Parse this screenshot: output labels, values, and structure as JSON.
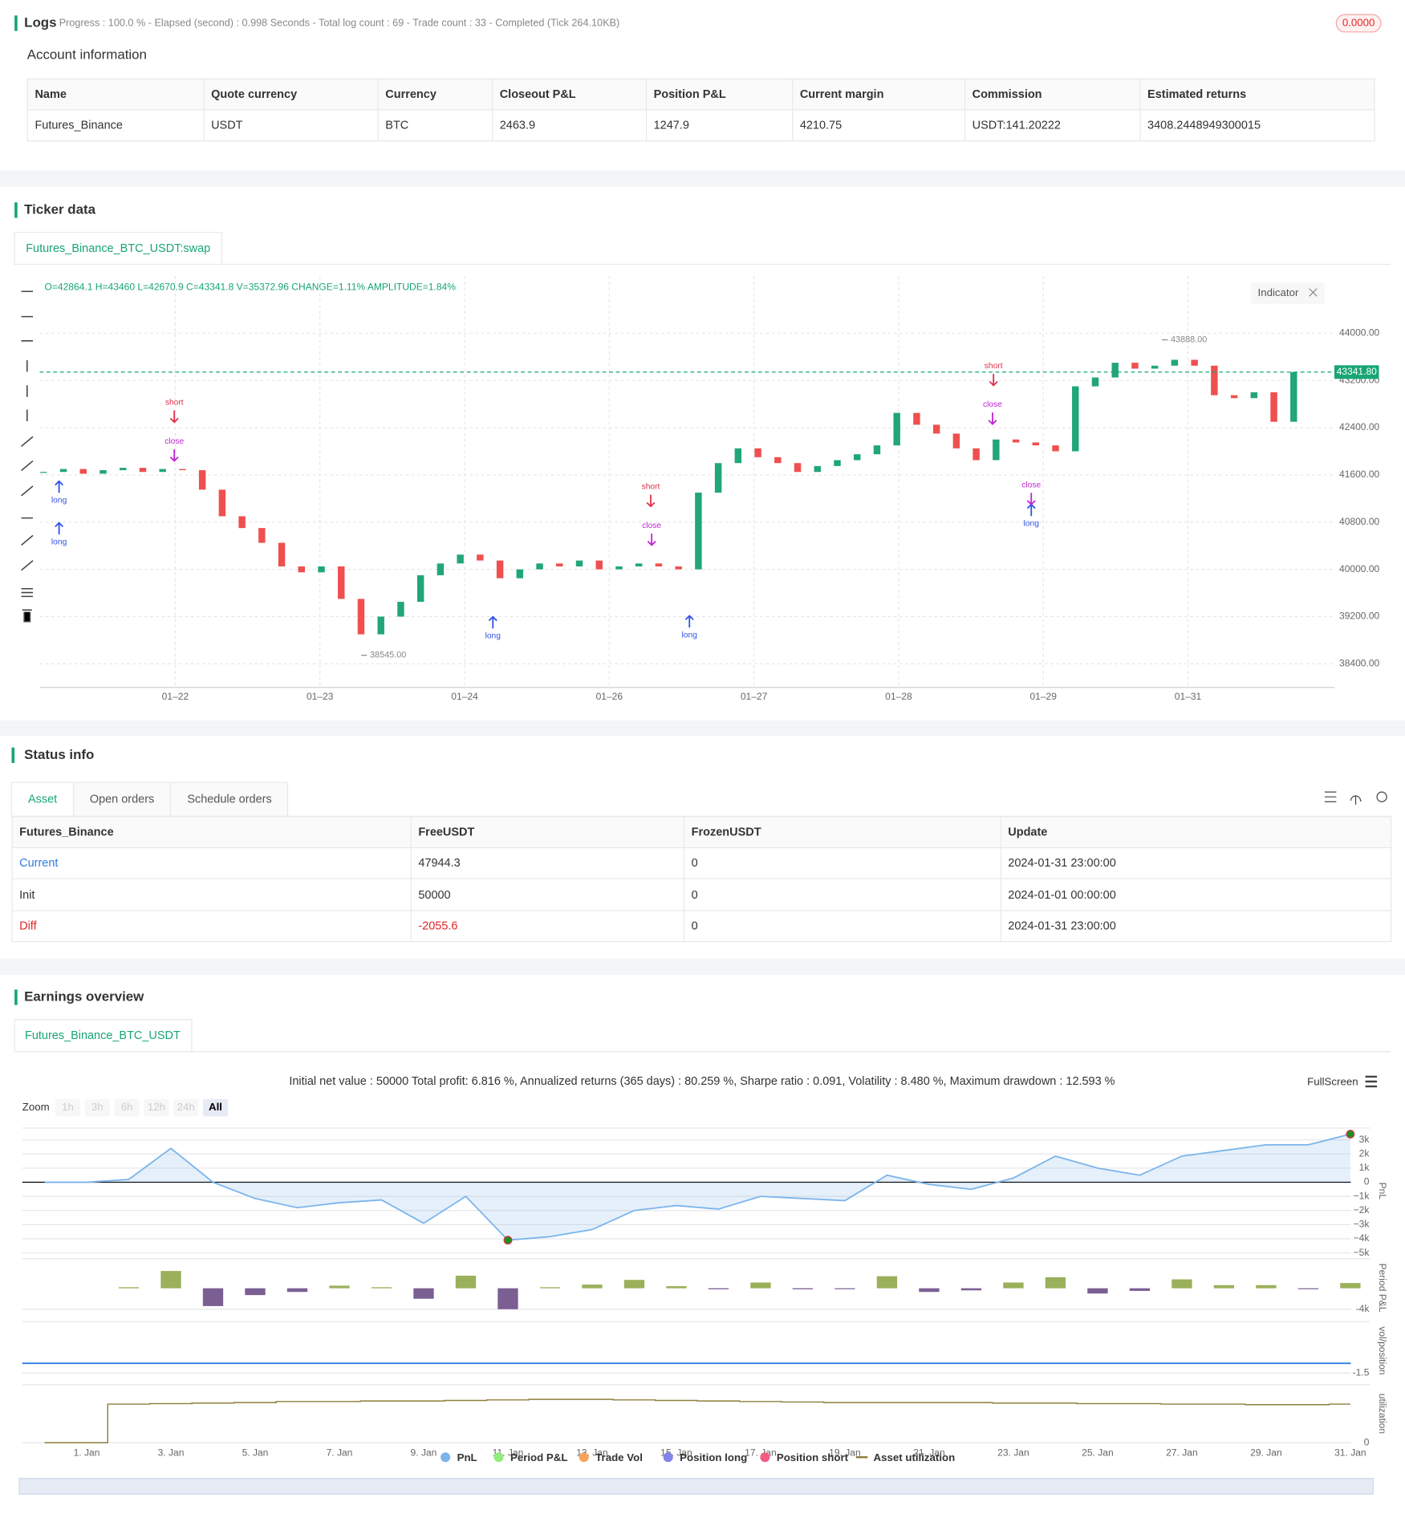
{
  "logs": {
    "title": "Logs",
    "status": "Progress : 100.0 % - Elapsed (second) : 0.998 Seconds - Total log count : 69 - Trade count : 33 - Completed (Tick 264.10KB)",
    "badge": "0.0000"
  },
  "account": {
    "title": "Account information",
    "columns": [
      "Name",
      "Quote currency",
      "Currency",
      "Closeout P&L",
      "Position P&L",
      "Current margin",
      "Commission",
      "Estimated returns"
    ],
    "rows": [
      [
        "Futures_Binance",
        "USDT",
        "BTC",
        "2463.9",
        "1247.9",
        "4210.75",
        "USDT:141.20222",
        "3408.2448949300015"
      ]
    ]
  },
  "ticker": {
    "title": "Ticker data",
    "tab": "Futures_Binance_BTC_USDT:swap",
    "ohlc": "O=42864.1 H=43460 L=42670.9 C=43341.8 V=35372.96 CHANGE=1.11% AMPLITUDE=1.84%",
    "indicator": "Indicator",
    "chart": {
      "type": "candlestick",
      "ylim": [
        38000,
        44970
      ],
      "yticks": [
        {
          "value": 38400,
          "label": "38400.00"
        },
        {
          "value": 39200,
          "label": "39200.00"
        },
        {
          "value": 40000,
          "label": "40000.00"
        },
        {
          "value": 40800,
          "label": "40800.00"
        },
        {
          "value": 41600,
          "label": "41600.00"
        },
        {
          "value": 42400,
          "label": "42400.00"
        },
        {
          "value": 43200,
          "label": "43200.00"
        },
        {
          "value": 44000,
          "label": "44000.00"
        }
      ],
      "xticks": [
        "01–22",
        "01–23",
        "01–24",
        "01–26",
        "01–27",
        "01–28",
        "01–29",
        "01–31"
      ],
      "closes": [
        41650,
        41700,
        41620,
        41680,
        41720,
        41650,
        41700,
        41680,
        41350,
        40900,
        40700,
        40450,
        40050,
        39950,
        40050,
        39500,
        38900,
        39200,
        39450,
        39900,
        40100,
        40250,
        40150,
        39850,
        40000,
        40100,
        40050,
        40150,
        40000,
        40050,
        40100,
        40050,
        40000,
        41300,
        41800,
        42050,
        41900,
        41800,
        41650,
        41750,
        41850,
        41950,
        42100,
        42650,
        42450,
        42300,
        42050,
        41850,
        42200,
        42150,
        42100,
        42000,
        43100,
        43250,
        43500,
        43400,
        43450,
        43550,
        43450,
        42950,
        42900,
        43000,
        42500,
        43341.8
      ],
      "last": {
        "value": 43341.8,
        "label": "43341.80"
      },
      "high": {
        "value": 43888,
        "label": "43888.00"
      },
      "low": {
        "value": 38545,
        "label": "38545.00"
      },
      "markers": [
        "short",
        "close",
        "long",
        "long",
        "short",
        "close",
        "long",
        "long",
        "short",
        "close",
        "long",
        "close"
      ]
    }
  },
  "status": {
    "title": "Status info",
    "tabs": [
      "Asset",
      "Open orders",
      "Schedule orders"
    ],
    "columns": [
      "Futures_Binance",
      "FreeUSDT",
      "FrozenUSDT",
      "Update"
    ],
    "rows": [
      [
        "Current",
        "47944.3",
        "0",
        "2024-01-31 23:00:00"
      ],
      [
        "Init",
        "50000",
        "0",
        "2024-01-01 00:00:00"
      ],
      [
        "Diff",
        "-2055.6",
        "0",
        "2024-01-31 23:00:00"
      ]
    ]
  },
  "earnings": {
    "title": "Earnings overview",
    "tab": "Futures_Binance_BTC_USDT",
    "summary": "Initial net value : 50000 Total profit: 6.816 %, Annualized returns (365 days) : 80.259 %, Sharpe ratio : 0.091, Volatility : 8.480 %, Maximum drawdown : 12.593 %",
    "fullscreen": "FullScreen",
    "zoom": {
      "label": "Zoom",
      "buttons": [
        "1h",
        "3h",
        "6h",
        "12h",
        "24h",
        "All"
      ]
    },
    "xticks": [
      "1. Jan",
      "3. Jan",
      "5. Jan",
      "7. Jan",
      "9. Jan",
      "11. Jan",
      "13. Jan",
      "15. Jan",
      "17. Jan",
      "19. Jan",
      "21. Jan",
      "23. Jan",
      "25. Jan",
      "27. Jan",
      "29. Jan",
      "31. Jan"
    ],
    "pnl": {
      "title": "PnL",
      "color": "#7cb5ec",
      "ylim": [
        -5070,
        3840
      ],
      "yticks": [
        {
          "value": 3000,
          "label": "3k"
        },
        {
          "value": 2000,
          "label": "2k"
        },
        {
          "value": 1000,
          "label": "1k"
        },
        0,
        {
          "value": -1000,
          "label": "−1k"
        },
        {
          "value": -2000,
          "label": "−2k"
        },
        {
          "value": -3000,
          "label": "−3k"
        },
        {
          "value": -4000,
          "label": "−4k"
        },
        {
          "value": -5000,
          "label": "−5k"
        }
      ],
      "values": [
        0,
        0,
        200,
        2400,
        0,
        -1150,
        -1800,
        -1450,
        -1250,
        -2900,
        -1000,
        -4100,
        -3850,
        -3350,
        -2000,
        -1650,
        -1900,
        -1000,
        -1150,
        -1300,
        500,
        -150,
        -500,
        300,
        1850,
        1000,
        500,
        1850,
        2250,
        2650,
        2650,
        3408
      ]
    },
    "period": {
      "title": "Period P&L",
      "ylim": [
        -5450,
        5640
      ],
      "yticks": [
        {
          "value": -4000,
          "label": "-4k"
        }
      ],
      "values": [
        null,
        null,
        200,
        3300,
        -3400,
        -1300,
        -700,
        500,
        200,
        -2000,
        2400,
        -4000,
        200,
        700,
        1600,
        400,
        -200,
        1100,
        -200,
        -100,
        2300,
        -700,
        -400,
        1100,
        2100,
        -1000,
        -500,
        1700,
        600,
        600,
        -100,
        1000
      ]
    },
    "vol": {
      "title": "vol/position",
      "ylim": [
        -2.55,
        6.45
      ],
      "yticks": [
        -1.5
      ]
    },
    "util": {
      "title": "utilization",
      "color": "#8d7f3c",
      "ylim": [
        0,
        1.1
      ],
      "yticks": [
        0
      ],
      "values": [
        0,
        0,
        0.73,
        0.74,
        0.75,
        0.76,
        0.78,
        0.78,
        0.79,
        0.79,
        0.8,
        0.81,
        0.82,
        0.82,
        0.81,
        0.8,
        0.79,
        0.78,
        0.77,
        0.76,
        0.76,
        0.76,
        0.76,
        0.75,
        0.75,
        0.74,
        0.74,
        0.73,
        0.73,
        0.72,
        0.72,
        0.73
      ]
    },
    "legend": [
      {
        "name": "PnL",
        "color": "#7cb5ec"
      },
      {
        "name": "Period P&L",
        "color": "#90ed7d"
      },
      {
        "name": "Trade Vol",
        "color": "#f7a35c"
      },
      {
        "name": "Position long",
        "color": "#8085e9"
      },
      {
        "name": "Position short",
        "color": "#f15c80"
      },
      {
        "name": "Asset utilization",
        "color": "#8d7f3c"
      }
    ]
  }
}
